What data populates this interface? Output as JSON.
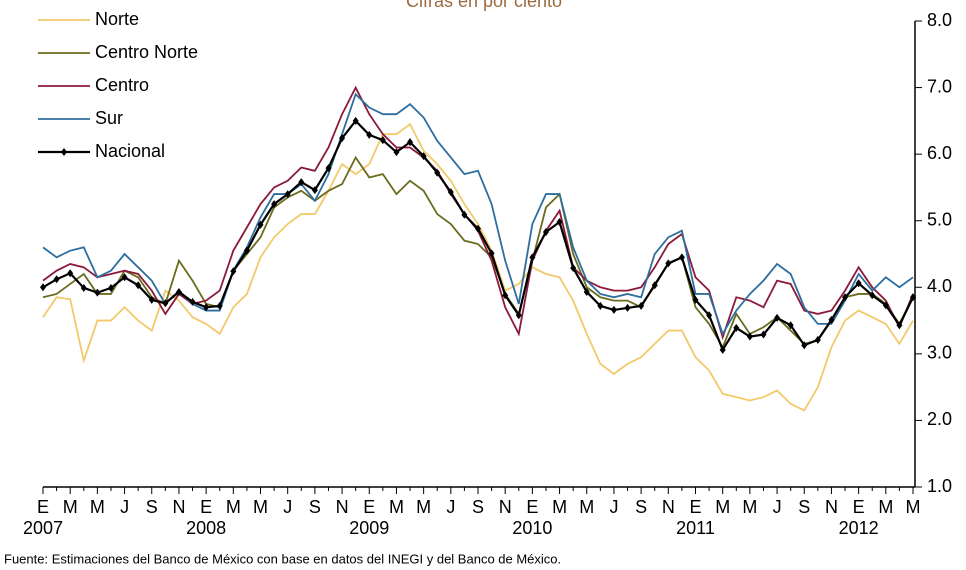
{
  "chart_data": {
    "type": "line",
    "title": "Cifras en por ciento",
    "source": "Fuente: Estimaciones del Banco de México con base en datos del INEGI y del Banco de México.",
    "categories": [
      "E",
      null,
      "M",
      null,
      "M",
      null,
      "J",
      null,
      "S",
      null,
      "N",
      null,
      "E",
      null,
      "M",
      null,
      "M",
      null,
      "J",
      null,
      "S",
      null,
      "N",
      null,
      "E",
      null,
      "M",
      null,
      "M",
      null,
      "J",
      null,
      "S",
      null,
      "N",
      null,
      "E",
      null,
      "M",
      null,
      "M",
      null,
      "J",
      null,
      "S",
      null,
      "N",
      null,
      "E",
      null,
      "M",
      null,
      "M",
      null,
      "J",
      null,
      "S",
      null,
      "N",
      null,
      "E",
      null,
      "M",
      null,
      "M"
    ],
    "years": [
      "2007",
      "2008",
      "2009",
      "2010",
      "2011",
      "2012"
    ],
    "ylim": [
      1,
      8
    ],
    "yticks": [
      {
        "value": 1,
        "label": "1.0"
      },
      {
        "value": 2,
        "label": "2.0"
      },
      {
        "value": 3,
        "label": "3.0"
      },
      {
        "value": 4,
        "label": "4.0"
      },
      {
        "value": 5,
        "label": "5.0"
      },
      {
        "value": 6,
        "label": "6.0"
      },
      {
        "value": 7,
        "label": "7.0"
      },
      {
        "value": 8,
        "label": "8.0"
      }
    ],
    "legend": "upper left",
    "series": [
      {
        "name": "Norte",
        "color": "#f2c96b",
        "values": [
          3.55,
          3.85,
          3.82,
          2.9,
          3.5,
          3.5,
          3.7,
          3.5,
          3.35,
          3.95,
          3.8,
          3.55,
          3.45,
          3.3,
          3.7,
          3.9,
          4.45,
          4.75,
          4.95,
          5.1,
          5.1,
          5.45,
          5.85,
          5.7,
          5.85,
          6.3,
          6.3,
          6.45,
          6.05,
          5.85,
          5.6,
          5.25,
          4.95,
          4.55,
          3.95,
          4.05,
          4.3,
          4.2,
          4.15,
          3.8,
          3.3,
          2.85,
          2.7,
          2.85,
          2.95,
          3.15,
          3.35,
          3.35,
          2.95,
          2.75,
          2.4,
          2.35,
          2.3,
          2.35,
          2.45,
          2.25,
          2.15,
          2.5,
          3.1,
          3.5,
          3.65,
          3.55,
          3.45,
          3.15,
          3.5
        ]
      },
      {
        "name": "Centro Norte",
        "color": "#6b6b1e",
        "values": [
          3.85,
          3.9,
          4.05,
          4.2,
          3.9,
          3.9,
          4.25,
          4.15,
          3.85,
          3.75,
          4.4,
          4.1,
          3.75,
          3.7,
          4.25,
          4.5,
          4.75,
          5.2,
          5.35,
          5.45,
          5.3,
          5.45,
          5.55,
          5.95,
          5.65,
          5.7,
          5.4,
          5.6,
          5.45,
          5.1,
          4.95,
          4.7,
          4.65,
          4.45,
          3.9,
          3.6,
          4.4,
          5.2,
          5.4,
          4.5,
          4.0,
          3.85,
          3.8,
          3.8,
          3.7,
          4.05,
          4.35,
          4.45,
          3.7,
          3.45,
          3.1,
          3.6,
          3.3,
          3.4,
          3.55,
          3.35,
          3.15,
          3.2,
          3.5,
          3.85,
          3.9,
          3.9,
          3.75,
          3.45,
          3.85
        ]
      },
      {
        "name": "Centro",
        "color": "#8b1a3a",
        "values": [
          4.1,
          4.25,
          4.35,
          4.3,
          4.15,
          4.2,
          4.25,
          4.2,
          3.95,
          3.6,
          3.9,
          3.75,
          3.8,
          3.95,
          4.55,
          4.9,
          5.25,
          5.5,
          5.6,
          5.8,
          5.75,
          6.1,
          6.6,
          7.0,
          6.6,
          6.3,
          6.1,
          6.1,
          5.95,
          5.75,
          5.4,
          5.1,
          4.85,
          4.4,
          3.7,
          3.3,
          4.4,
          4.85,
          5.15,
          4.3,
          4.1,
          4.0,
          3.95,
          3.95,
          4.0,
          4.3,
          4.65,
          4.8,
          4.15,
          3.95,
          3.25,
          3.85,
          3.8,
          3.7,
          4.1,
          4.05,
          3.65,
          3.6,
          3.65,
          3.95,
          4.3,
          4.0,
          3.8,
          3.4,
          3.9
        ]
      },
      {
        "name": "Sur",
        "color": "#2e6e9e",
        "values": [
          4.6,
          4.45,
          4.55,
          4.6,
          4.15,
          4.25,
          4.5,
          4.3,
          4.1,
          3.75,
          3.95,
          3.75,
          3.65,
          3.65,
          4.25,
          4.6,
          5.05,
          5.4,
          5.4,
          5.55,
          5.3,
          5.7,
          6.3,
          6.9,
          6.7,
          6.6,
          6.6,
          6.75,
          6.55,
          6.2,
          5.95,
          5.7,
          5.75,
          5.25,
          4.4,
          3.75,
          4.95,
          5.4,
          5.4,
          4.6,
          4.1,
          3.9,
          3.85,
          3.9,
          3.85,
          4.5,
          4.75,
          4.85,
          3.9,
          3.9,
          3.3,
          3.65,
          3.9,
          4.1,
          4.35,
          4.2,
          3.7,
          3.45,
          3.45,
          3.8,
          4.2,
          3.95,
          4.15,
          4.0,
          4.15
        ]
      },
      {
        "name": "Nacional",
        "color": "#000000",
        "marker": true,
        "values": [
          4.0,
          4.12,
          4.21,
          3.99,
          3.92,
          3.99,
          4.15,
          4.03,
          3.81,
          3.76,
          3.93,
          3.78,
          3.7,
          3.72,
          4.24,
          4.55,
          4.94,
          5.25,
          5.4,
          5.58,
          5.46,
          5.79,
          6.24,
          6.5,
          6.29,
          6.21,
          6.03,
          6.18,
          5.97,
          5.72,
          5.43,
          5.09,
          4.88,
          4.51,
          3.88,
          3.58,
          4.45,
          4.83,
          4.98,
          4.29,
          3.93,
          3.72,
          3.66,
          3.69,
          3.72,
          4.03,
          4.36,
          4.45,
          3.81,
          3.58,
          3.06,
          3.39,
          3.26,
          3.29,
          3.54,
          3.43,
          3.13,
          3.21,
          3.51,
          3.85,
          4.06,
          3.88,
          3.73,
          3.43,
          3.85
        ]
      }
    ]
  }
}
